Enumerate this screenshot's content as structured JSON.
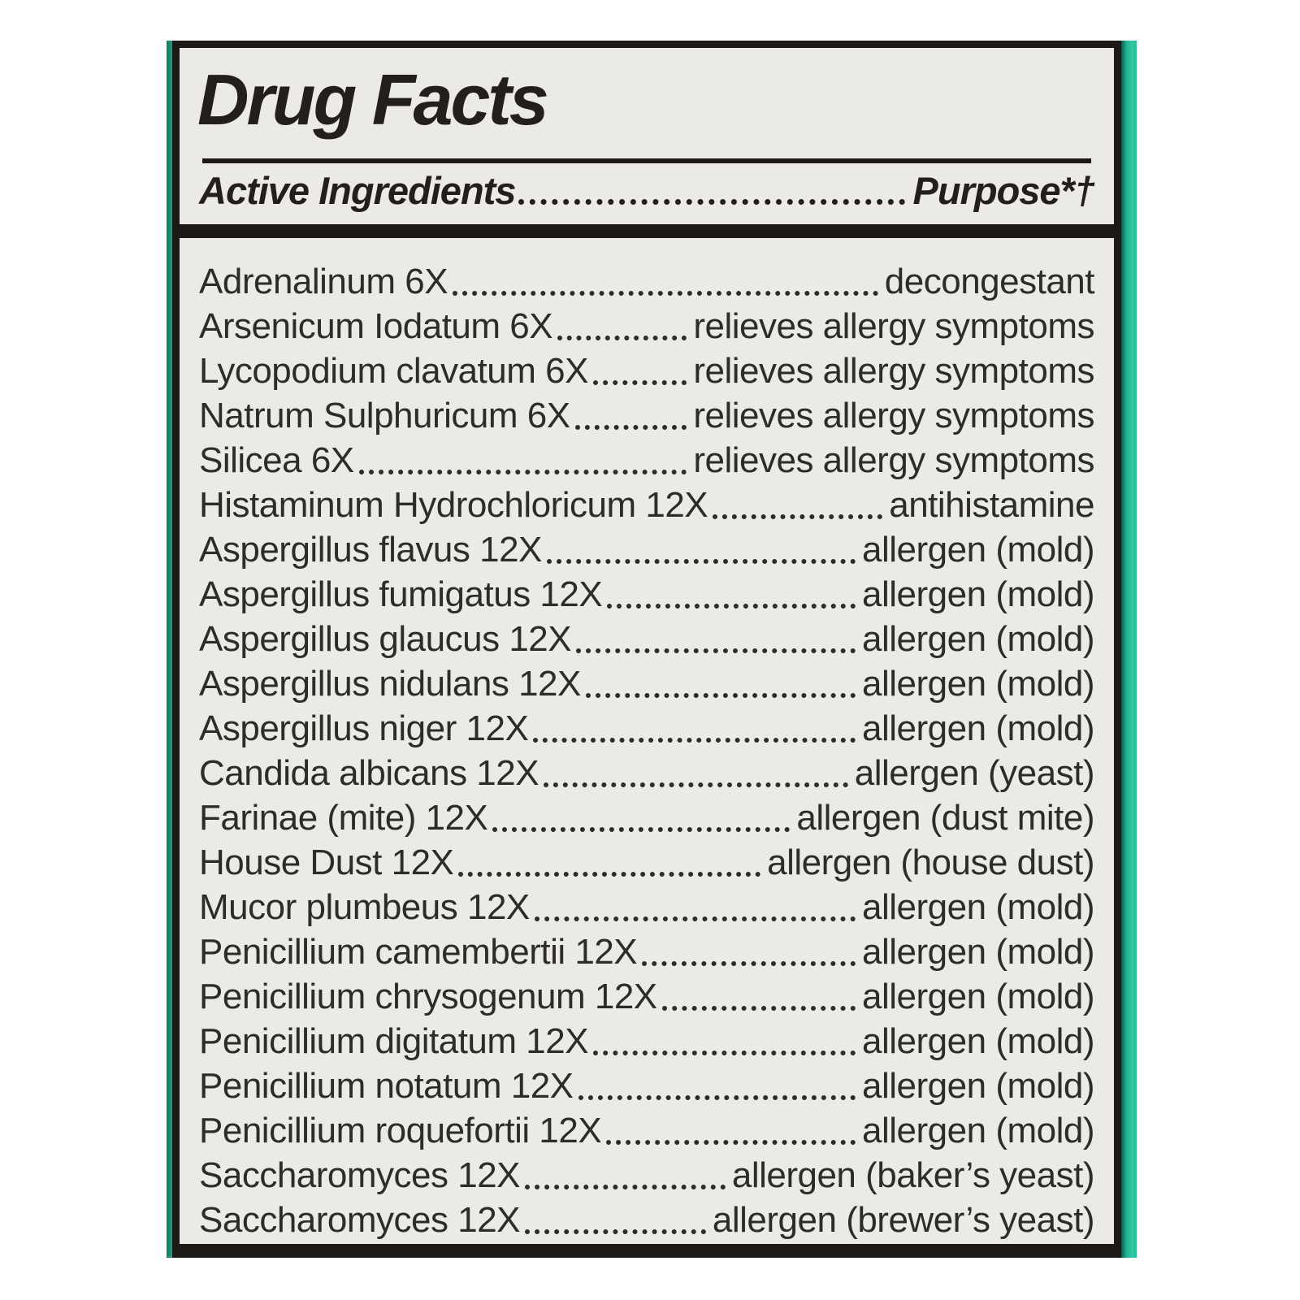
{
  "label": {
    "title": "Drug Facts",
    "header": {
      "left": "Active Ingredients",
      "right": "Purpose*†"
    },
    "ingredients": [
      {
        "name": "Adrenalinum 6X",
        "purpose": "decongestant"
      },
      {
        "name": "Arsenicum Iodatum 6X",
        "purpose": "relieves allergy symptoms"
      },
      {
        "name": "Lycopodium clavatum 6X",
        "purpose": "relieves allergy symptoms"
      },
      {
        "name": "Natrum Sulphuricum 6X",
        "purpose": "relieves allergy symptoms"
      },
      {
        "name": "Silicea 6X",
        "purpose": "relieves allergy symptoms"
      },
      {
        "name": "Histaminum Hydrochloricum 12X",
        "purpose": "antihistamine"
      },
      {
        "name": "Aspergillus flavus 12X",
        "purpose": "allergen (mold)"
      },
      {
        "name": "Aspergillus fumigatus 12X",
        "purpose": "allergen (mold)"
      },
      {
        "name": "Aspergillus glaucus 12X",
        "purpose": "allergen (mold)"
      },
      {
        "name": "Aspergillus nidulans 12X",
        "purpose": "allergen (mold)"
      },
      {
        "name": "Aspergillus niger 12X",
        "purpose": "allergen (mold)"
      },
      {
        "name": "Candida albicans 12X",
        "purpose": "allergen (yeast)"
      },
      {
        "name": "Farinae (mite) 12X",
        "purpose": "allergen (dust mite)"
      },
      {
        "name": "House Dust 12X",
        "purpose": "allergen (house dust)"
      },
      {
        "name": "Mucor plumbeus 12X",
        "purpose": "allergen (mold)"
      },
      {
        "name": "Penicillium camembertii 12X",
        "purpose": "allergen (mold)"
      },
      {
        "name": "Penicillium chrysogenum 12X",
        "purpose": "allergen (mold)"
      },
      {
        "name": "Penicillium digitatum 12X",
        "purpose": "allergen (mold)"
      },
      {
        "name": "Penicillium notatum 12X",
        "purpose": "allergen (mold)"
      },
      {
        "name": "Penicillium roquefortii 12X",
        "purpose": "allergen (mold)"
      },
      {
        "name": "Saccharomyces 12X",
        "purpose": "allergen (baker’s yeast)"
      },
      {
        "name": "Saccharomyces 12X",
        "purpose": "allergen (brewer’s yeast)"
      }
    ]
  },
  "colors": {
    "box_edge_teal": "#2bbd9a",
    "panel_background": "#ebeae5",
    "frame_ink": "#1c1916",
    "text_ink": "#2e2c29"
  }
}
